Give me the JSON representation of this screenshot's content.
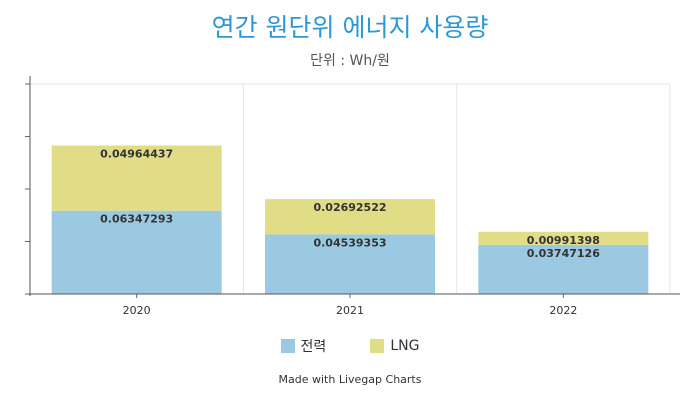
{
  "chart_data": {
    "type": "bar",
    "stacked": true,
    "title": "연간 원단위 에너지 사용량",
    "subtitle": "단위 : Wh/원",
    "categories": [
      "2020",
      "2021",
      "2022"
    ],
    "series": [
      {
        "name": "전력",
        "color": "#9ac9e1",
        "values": [
          0.06347293,
          0.04539353,
          0.03747126
        ]
      },
      {
        "name": "LNG",
        "color": "#e1dd86",
        "values": [
          0.04964437,
          0.02692522,
          0.00991398
        ]
      }
    ],
    "ylim": [
      0,
      0.16
    ],
    "grid": true,
    "legend": "bottom"
  },
  "footer": {
    "credit": "Made with Livegap Charts"
  }
}
